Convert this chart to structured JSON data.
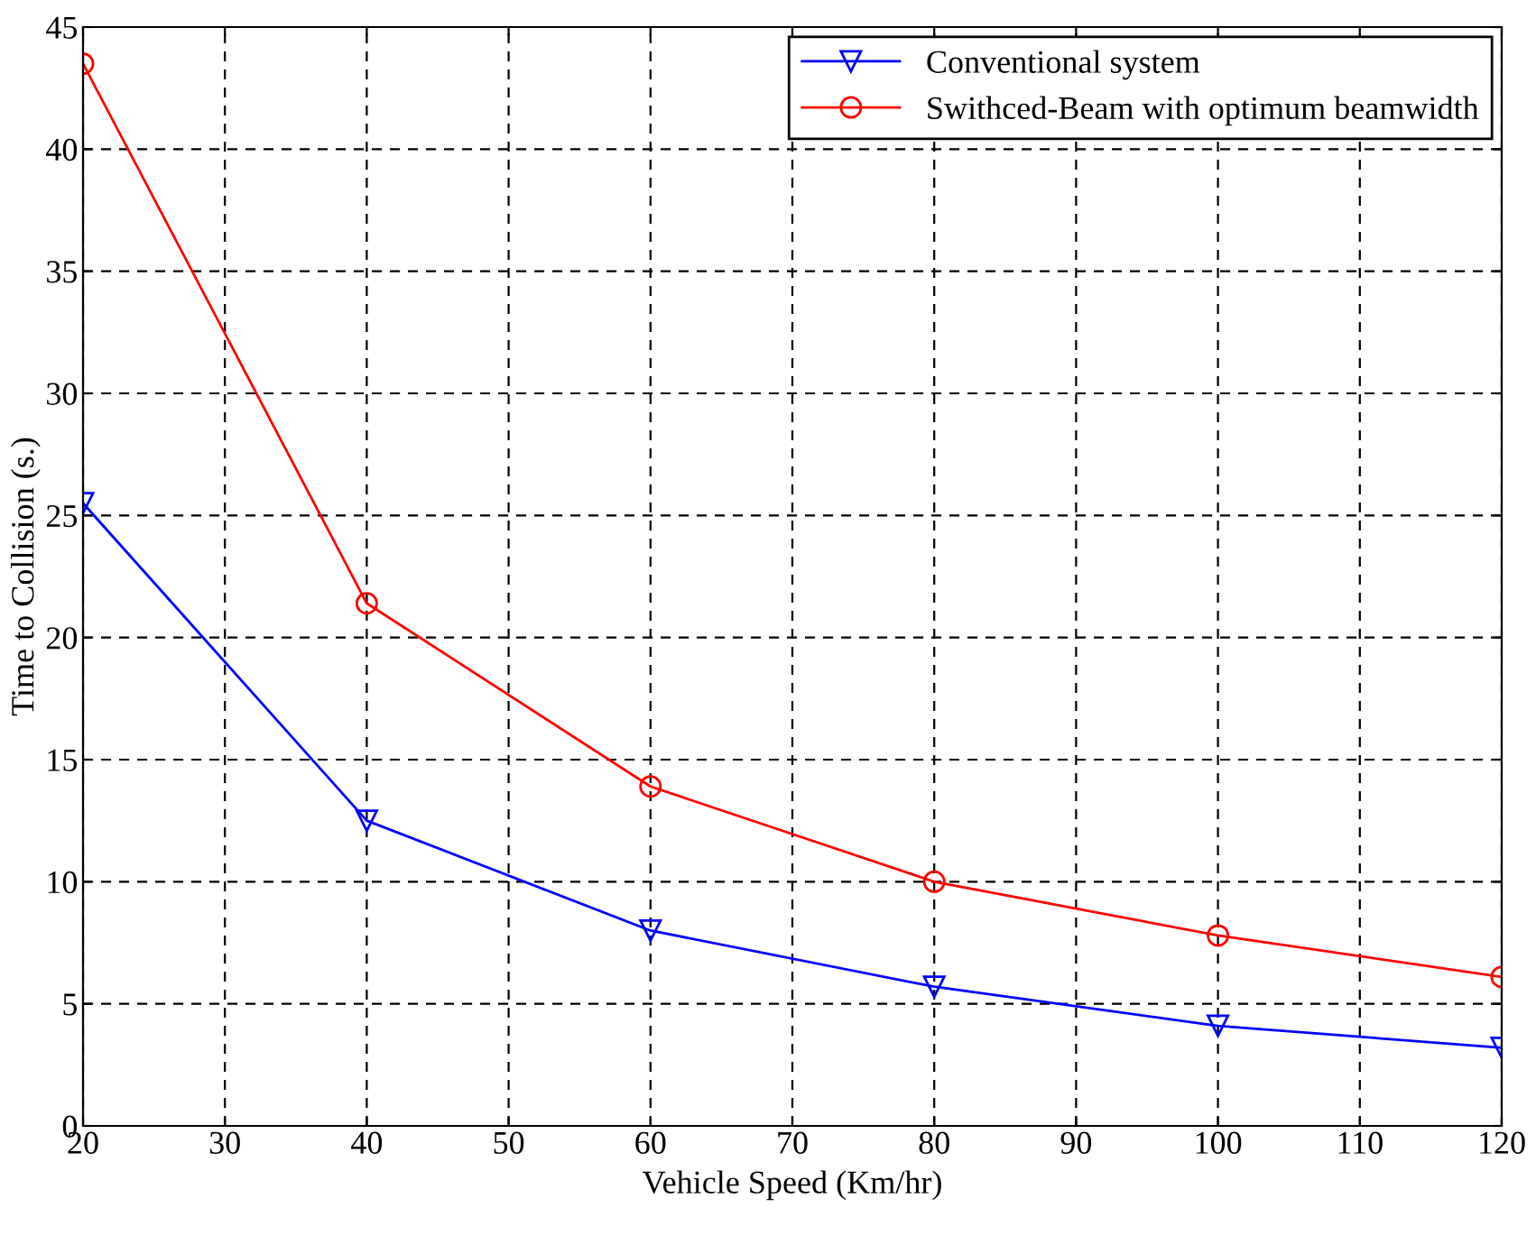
{
  "chart_data": {
    "type": "line",
    "xlabel": "Vehicle Speed (Km/hr)",
    "ylabel": "Time to Collision (s.)",
    "x": [
      20,
      40,
      60,
      80,
      100,
      120
    ],
    "series": [
      {
        "name": "Conventional system",
        "color": "#0000ff",
        "marker": "triangle",
        "values": [
          25.5,
          12.5,
          8.0,
          5.7,
          4.1,
          3.2
        ]
      },
      {
        "name": "Swithced-Beam with optimum beamwidth",
        "color": "#ff0000",
        "marker": "circle",
        "values": [
          43.5,
          21.4,
          13.9,
          10.0,
          7.8,
          6.1
        ]
      }
    ],
    "xlim": [
      20,
      120
    ],
    "xticks": [
      20,
      30,
      40,
      50,
      60,
      70,
      80,
      90,
      100,
      110,
      120
    ],
    "ylim": [
      0,
      45
    ],
    "yticks": [
      0,
      5,
      10,
      15,
      20,
      25,
      30,
      35,
      40,
      45
    ],
    "grid": true,
    "legend": "top right",
    "line_style": "solid"
  }
}
